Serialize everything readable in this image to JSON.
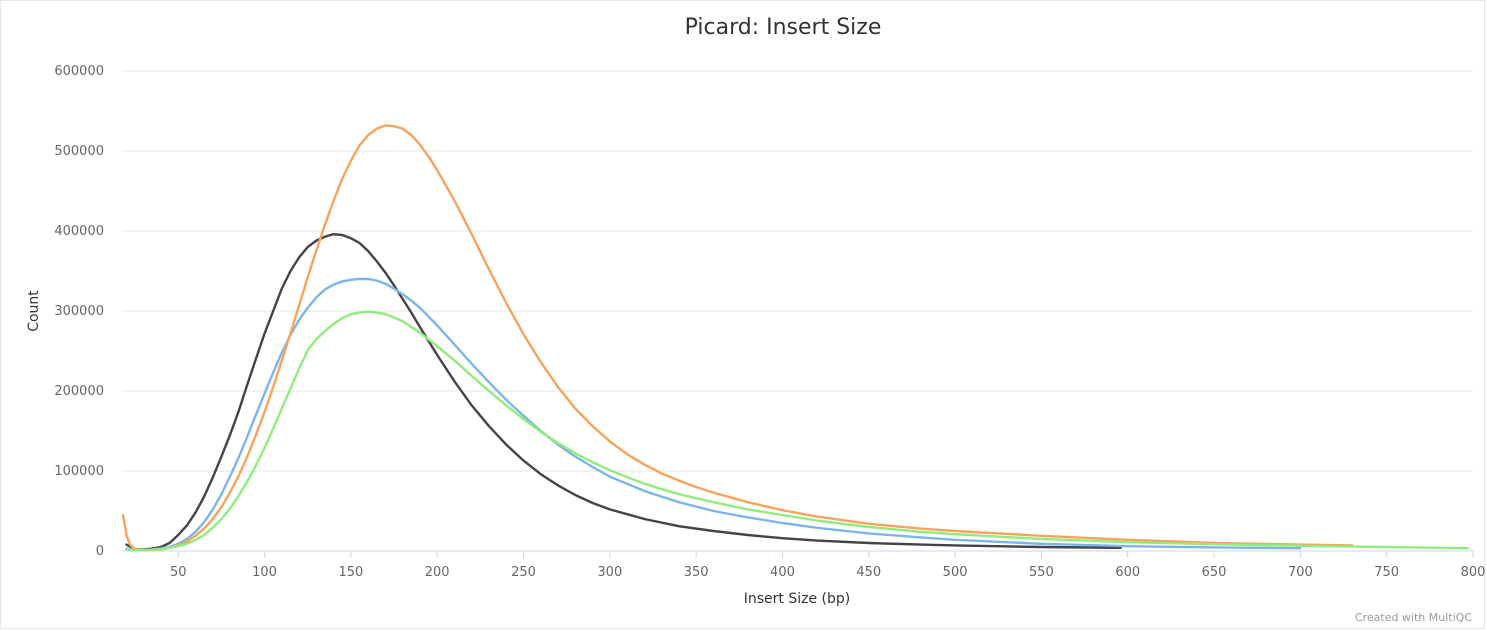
{
  "chart_data": {
    "type": "line",
    "title": "Picard: Insert Size",
    "xlabel": "Insert Size (bp)",
    "ylabel": "Count",
    "xlim": [
      18,
      800
    ],
    "ylim": [
      0,
      600000
    ],
    "x_ticks": [
      50,
      100,
      150,
      200,
      250,
      300,
      350,
      400,
      450,
      500,
      550,
      600,
      650,
      700,
      750,
      800
    ],
    "y_ticks": [
      0,
      100000,
      200000,
      300000,
      400000,
      500000,
      600000
    ],
    "grid": true,
    "legend": "none",
    "series": [
      {
        "color": "#434348",
        "points": [
          [
            20,
            8000
          ],
          [
            25,
            2000
          ],
          [
            30,
            2000
          ],
          [
            35,
            3000
          ],
          [
            40,
            5000
          ],
          [
            45,
            10000
          ],
          [
            50,
            20000
          ],
          [
            55,
            32000
          ],
          [
            60,
            48000
          ],
          [
            65,
            68000
          ],
          [
            70,
            92000
          ],
          [
            75,
            118000
          ],
          [
            80,
            145000
          ],
          [
            85,
            175000
          ],
          [
            90,
            208000
          ],
          [
            95,
            240000
          ],
          [
            100,
            272000
          ],
          [
            105,
            300000
          ],
          [
            110,
            328000
          ],
          [
            115,
            350000
          ],
          [
            120,
            367000
          ],
          [
            125,
            380000
          ],
          [
            130,
            388000
          ],
          [
            135,
            393000
          ],
          [
            140,
            396000
          ],
          [
            145,
            395000
          ],
          [
            150,
            391000
          ],
          [
            155,
            385000
          ],
          [
            160,
            375000
          ],
          [
            165,
            362000
          ],
          [
            170,
            348000
          ],
          [
            175,
            332000
          ],
          [
            180,
            315000
          ],
          [
            185,
            298000
          ],
          [
            190,
            280000
          ],
          [
            200,
            245000
          ],
          [
            210,
            212000
          ],
          [
            220,
            182000
          ],
          [
            230,
            156000
          ],
          [
            240,
            133000
          ],
          [
            250,
            113000
          ],
          [
            260,
            96000
          ],
          [
            270,
            82000
          ],
          [
            280,
            70000
          ],
          [
            290,
            60000
          ],
          [
            300,
            52000
          ],
          [
            320,
            40000
          ],
          [
            340,
            31000
          ],
          [
            360,
            25000
          ],
          [
            380,
            20000
          ],
          [
            400,
            16000
          ],
          [
            420,
            13000
          ],
          [
            450,
            10000
          ],
          [
            480,
            8000
          ],
          [
            500,
            7000
          ],
          [
            550,
            5000
          ],
          [
            596,
            4000
          ]
        ]
      },
      {
        "color": "#7cb5ec",
        "points": [
          [
            20,
            3000
          ],
          [
            25,
            1500
          ],
          [
            30,
            1500
          ],
          [
            35,
            2000
          ],
          [
            40,
            3000
          ],
          [
            45,
            5000
          ],
          [
            50,
            9000
          ],
          [
            55,
            15000
          ],
          [
            60,
            24000
          ],
          [
            65,
            36000
          ],
          [
            70,
            52000
          ],
          [
            75,
            71000
          ],
          [
            80,
            93000
          ],
          [
            85,
            117000
          ],
          [
            90,
            143000
          ],
          [
            95,
            170000
          ],
          [
            100,
            197000
          ],
          [
            105,
            223000
          ],
          [
            110,
            248000
          ],
          [
            115,
            270000
          ],
          [
            120,
            289000
          ],
          [
            125,
            304000
          ],
          [
            130,
            317000
          ],
          [
            135,
            327000
          ],
          [
            140,
            333000
          ],
          [
            145,
            337000
          ],
          [
            150,
            339000
          ],
          [
            155,
            340000
          ],
          [
            160,
            340000
          ],
          [
            165,
            338000
          ],
          [
            170,
            334000
          ],
          [
            175,
            328000
          ],
          [
            180,
            321000
          ],
          [
            185,
            313000
          ],
          [
            190,
            304000
          ],
          [
            200,
            282000
          ],
          [
            210,
            258000
          ],
          [
            220,
            234000
          ],
          [
            230,
            211000
          ],
          [
            240,
            189000
          ],
          [
            250,
            169000
          ],
          [
            260,
            150000
          ],
          [
            270,
            133000
          ],
          [
            280,
            118000
          ],
          [
            290,
            105000
          ],
          [
            300,
            93000
          ],
          [
            320,
            75000
          ],
          [
            340,
            61000
          ],
          [
            360,
            50000
          ],
          [
            380,
            42000
          ],
          [
            400,
            35000
          ],
          [
            420,
            29000
          ],
          [
            450,
            22000
          ],
          [
            480,
            17000
          ],
          [
            500,
            14000
          ],
          [
            550,
            9000
          ],
          [
            600,
            6000
          ],
          [
            650,
            4500
          ],
          [
            700,
            3500
          ]
        ]
      },
      {
        "color": "#f7a35c",
        "points": [
          [
            18,
            45000
          ],
          [
            20,
            20000
          ],
          [
            22,
            8000
          ],
          [
            25,
            2000
          ],
          [
            30,
            1000
          ],
          [
            35,
            1500
          ],
          [
            40,
            2000
          ],
          [
            45,
            4000
          ],
          [
            50,
            7000
          ],
          [
            55,
            12000
          ],
          [
            60,
            19000
          ],
          [
            65,
            28000
          ],
          [
            70,
            40000
          ],
          [
            75,
            55000
          ],
          [
            80,
            73000
          ],
          [
            85,
            94000
          ],
          [
            90,
            118000
          ],
          [
            95,
            145000
          ],
          [
            100,
            174000
          ],
          [
            105,
            205000
          ],
          [
            110,
            238000
          ],
          [
            115,
            272000
          ],
          [
            120,
            307000
          ],
          [
            125,
            342000
          ],
          [
            130,
            376000
          ],
          [
            135,
            408000
          ],
          [
            140,
            438000
          ],
          [
            145,
            465000
          ],
          [
            150,
            488000
          ],
          [
            155,
            507000
          ],
          [
            160,
            520000
          ],
          [
            165,
            528000
          ],
          [
            170,
            532000
          ],
          [
            175,
            531000
          ],
          [
            180,
            528000
          ],
          [
            185,
            520000
          ],
          [
            190,
            508000
          ],
          [
            195,
            493000
          ],
          [
            200,
            476000
          ],
          [
            210,
            438000
          ],
          [
            220,
            396000
          ],
          [
            230,
            352000
          ],
          [
            240,
            310000
          ],
          [
            250,
            271000
          ],
          [
            260,
            236000
          ],
          [
            270,
            205000
          ],
          [
            280,
            178000
          ],
          [
            290,
            156000
          ],
          [
            300,
            137000
          ],
          [
            310,
            121000
          ],
          [
            320,
            108000
          ],
          [
            330,
            97000
          ],
          [
            340,
            88000
          ],
          [
            350,
            80000
          ],
          [
            360,
            73000
          ],
          [
            380,
            61000
          ],
          [
            400,
            51000
          ],
          [
            420,
            43000
          ],
          [
            450,
            34000
          ],
          [
            480,
            28000
          ],
          [
            500,
            25000
          ],
          [
            550,
            19000
          ],
          [
            600,
            14000
          ],
          [
            650,
            10000
          ],
          [
            700,
            8000
          ],
          [
            730,
            7000
          ]
        ]
      },
      {
        "color": "#90ed7d",
        "points": [
          [
            20,
            2000
          ],
          [
            25,
            1000
          ],
          [
            30,
            1000
          ],
          [
            35,
            1500
          ],
          [
            40,
            2500
          ],
          [
            45,
            4000
          ],
          [
            50,
            6000
          ],
          [
            55,
            9000
          ],
          [
            60,
            14000
          ],
          [
            65,
            20000
          ],
          [
            70,
            29000
          ],
          [
            75,
            40000
          ],
          [
            80,
            53000
          ],
          [
            85,
            69000
          ],
          [
            90,
            87000
          ],
          [
            95,
            107000
          ],
          [
            100,
            129000
          ],
          [
            105,
            153000
          ],
          [
            110,
            178000
          ],
          [
            115,
            203000
          ],
          [
            120,
            228000
          ],
          [
            125,
            251000
          ],
          [
            130,
            265000
          ],
          [
            135,
            275000
          ],
          [
            140,
            284000
          ],
          [
            145,
            291000
          ],
          [
            150,
            296000
          ],
          [
            155,
            298000
          ],
          [
            160,
            299000
          ],
          [
            165,
            298000
          ],
          [
            170,
            296000
          ],
          [
            175,
            292000
          ],
          [
            180,
            287000
          ],
          [
            185,
            280000
          ],
          [
            190,
            273000
          ],
          [
            200,
            256000
          ],
          [
            210,
            238000
          ],
          [
            220,
            219000
          ],
          [
            230,
            200000
          ],
          [
            240,
            182000
          ],
          [
            250,
            165000
          ],
          [
            260,
            149000
          ],
          [
            270,
            135000
          ],
          [
            280,
            122000
          ],
          [
            290,
            111000
          ],
          [
            300,
            101000
          ],
          [
            320,
            84000
          ],
          [
            340,
            71000
          ],
          [
            360,
            61000
          ],
          [
            380,
            52000
          ],
          [
            400,
            45000
          ],
          [
            420,
            38000
          ],
          [
            450,
            30000
          ],
          [
            480,
            24000
          ],
          [
            500,
            21000
          ],
          [
            550,
            15000
          ],
          [
            600,
            11000
          ],
          [
            650,
            8500
          ],
          [
            700,
            6500
          ],
          [
            750,
            5000
          ],
          [
            797,
            3500
          ]
        ]
      }
    ]
  },
  "footer": {
    "credit": "Created with MultiQC"
  }
}
